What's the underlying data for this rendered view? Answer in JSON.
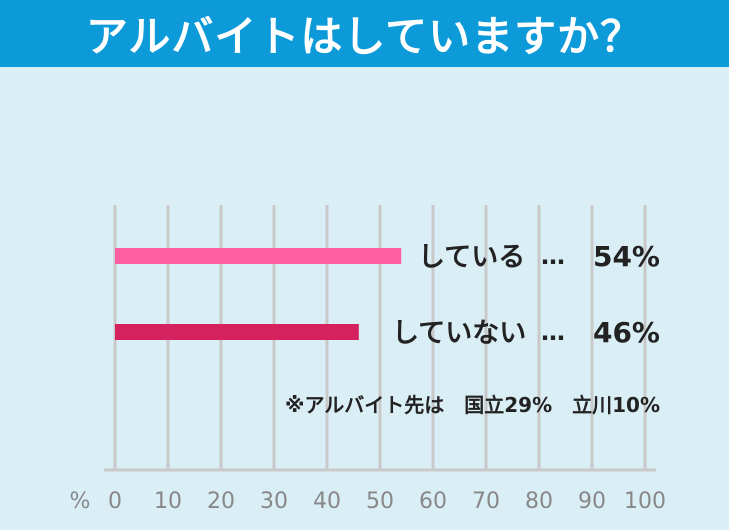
{
  "title": "アルバイトはしていますか？",
  "chart_data": {
    "type": "bar",
    "orientation": "horizontal",
    "unit_label": "%",
    "xlim": [
      0,
      100
    ],
    "ticks": [
      "0",
      "10",
      "20",
      "30",
      "40",
      "50",
      "60",
      "70",
      "80",
      "90",
      "100"
    ],
    "categories": [
      "している",
      "していない"
    ],
    "values": [
      54,
      46
    ],
    "value_labels": [
      "54%",
      "46%"
    ],
    "separator": "…",
    "bar_colors": [
      "#ff5ea0",
      "#d6215f"
    ],
    "grid": true,
    "note": "※アルバイト先は　国立29%　立川10%"
  },
  "colors": {
    "header": "#0d9ad8",
    "background": "#daeef6",
    "gridline": "#c9c9c9"
  }
}
